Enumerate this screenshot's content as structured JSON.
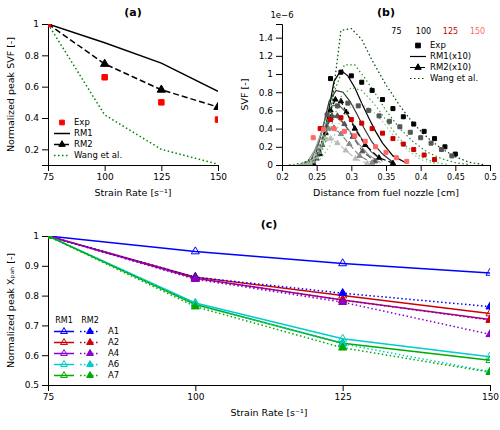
{
  "chart_data": [
    {
      "type": "line",
      "title": "(a)",
      "x_label": "Strain Rate [s⁻¹]",
      "y_label": "Normalized peak SVF [-]",
      "x": [
        75,
        100,
        125,
        150
      ],
      "series": [
        {
          "name": "Exp",
          "type": "scatter",
          "color": "red",
          "marker": "square",
          "values": [
            1.0,
            0.66,
            0.5,
            0.39
          ]
        },
        {
          "name": "RM1",
          "type": "line",
          "color": "black",
          "line_style": "solid",
          "values": [
            1.0,
            0.88,
            0.75,
            0.57
          ]
        },
        {
          "name": "RM2",
          "type": "line",
          "color": "black",
          "line_style": "dashed",
          "marker": "triangle",
          "values": [
            1.0,
            0.745,
            0.58,
            0.47
          ]
        },
        {
          "name": "Wang et al.",
          "type": "line",
          "color": "green",
          "line_style": "dotted",
          "values": [
            1.0,
            0.42,
            0.2,
            0.105
          ]
        }
      ],
      "xlim": [
        75,
        150
      ],
      "xticks": [
        75,
        100,
        125,
        150
      ],
      "ylim": [
        0.1,
        1.0
      ],
      "yticks": [
        0.2,
        0.4,
        0.6,
        0.8,
        1.0
      ],
      "grid": false,
      "legend": "lower left"
    },
    {
      "type": "line",
      "title": "(b)",
      "x_label": "Distance from fuel nozzle [cm]",
      "y_label": "SVF [-]",
      "annotations": [
        {
          "text": "1e−6"
        },
        {
          "text": "75",
          "color": "black"
        },
        {
          "text": "100",
          "color": "black"
        },
        {
          "text": "125",
          "color": "#cc0000"
        },
        {
          "text": "150",
          "color": "#ff6666"
        }
      ],
      "series": [
        {
          "name": "Exp",
          "type": "scatter",
          "marker": "square",
          "curves": [
            {
              "color": "black",
              "x": [
                0.27,
                0.285,
                0.3,
                0.315,
                0.33,
                0.345,
                0.36,
                0.375,
                0.39,
                0.405,
                0.42,
                0.435,
                0.45
              ],
              "values": [
                0.95,
                1.02,
                0.98,
                0.91,
                0.82,
                0.72,
                0.62,
                0.53,
                0.45,
                0.37,
                0.29,
                0.2,
                0.12
              ]
            },
            {
              "color": "#555555",
              "x": [
                0.265,
                0.28,
                0.295,
                0.31,
                0.325,
                0.34,
                0.355,
                0.37,
                0.385,
                0.4,
                0.415,
                0.43,
                0.445
              ],
              "values": [
                0.55,
                0.65,
                0.68,
                0.65,
                0.6,
                0.54,
                0.48,
                0.42,
                0.36,
                0.3,
                0.24,
                0.17,
                0.1
              ]
            },
            {
              "color": "#cc0000",
              "x": [
                0.255,
                0.27,
                0.285,
                0.3,
                0.315,
                0.33,
                0.345,
                0.36,
                0.375,
                0.39,
                0.405,
                0.42
              ],
              "values": [
                0.4,
                0.5,
                0.52,
                0.5,
                0.46,
                0.4,
                0.35,
                0.29,
                0.23,
                0.17,
                0.11,
                0.06
              ]
            },
            {
              "color": "#ff6666",
              "x": [
                0.245,
                0.26,
                0.275,
                0.29,
                0.305,
                0.32,
                0.335,
                0.35,
                0.365,
                0.38
              ],
              "values": [
                0.3,
                0.39,
                0.4,
                0.37,
                0.32,
                0.26,
                0.2,
                0.14,
                0.08,
                0.04
              ]
            }
          ]
        },
        {
          "name": "RM1(x10)",
          "type": "line",
          "line_style": "solid",
          "curves": [
            {
              "color": "#000000",
              "x": [
                0.24,
                0.255,
                0.265,
                0.275,
                0.285,
                0.295,
                0.305,
                0.315,
                0.325,
                0.335,
                0.345,
                0.36,
                0.38
              ],
              "values": [
                0.02,
                0.15,
                0.5,
                0.92,
                1.04,
                0.98,
                0.85,
                0.68,
                0.52,
                0.37,
                0.24,
                0.1,
                0.02
              ]
            },
            {
              "color": "#333333",
              "x": [
                0.235,
                0.248,
                0.258,
                0.268,
                0.278,
                0.288,
                0.298,
                0.308,
                0.318,
                0.33,
                0.345,
                0.36
              ],
              "values": [
                0.01,
                0.1,
                0.38,
                0.7,
                0.82,
                0.8,
                0.7,
                0.56,
                0.41,
                0.25,
                0.12,
                0.03
              ]
            },
            {
              "color": "#666666",
              "x": [
                0.23,
                0.242,
                0.252,
                0.262,
                0.272,
                0.282,
                0.292,
                0.302,
                0.314,
                0.328,
                0.345
              ],
              "values": [
                0.005,
                0.06,
                0.23,
                0.5,
                0.65,
                0.66,
                0.58,
                0.46,
                0.3,
                0.15,
                0.04
              ]
            },
            {
              "color": "#999999",
              "x": [
                0.225,
                0.237,
                0.247,
                0.257,
                0.267,
                0.277,
                0.287,
                0.298,
                0.31,
                0.325,
                0.342
              ],
              "values": [
                0.003,
                0.04,
                0.16,
                0.36,
                0.5,
                0.53,
                0.47,
                0.37,
                0.24,
                0.11,
                0.025
              ]
            }
          ]
        },
        {
          "name": "RM2(x10)",
          "type": "line",
          "line_style": "dashed",
          "marker": "triangle",
          "curves": [
            {
              "color": "#000000",
              "x": [
                0.245,
                0.255,
                0.263,
                0.27,
                0.277,
                0.285,
                0.293,
                0.305,
                0.32,
                0.34,
                0.36
              ],
              "values": [
                0.02,
                0.12,
                0.35,
                0.6,
                0.72,
                0.7,
                0.58,
                0.4,
                0.22,
                0.08,
                0.02
              ]
            },
            {
              "color": "#555555",
              "x": [
                0.24,
                0.25,
                0.258,
                0.265,
                0.272,
                0.28,
                0.29,
                0.302,
                0.316,
                0.334
              ],
              "values": [
                0.01,
                0.07,
                0.22,
                0.42,
                0.54,
                0.54,
                0.45,
                0.31,
                0.15,
                0.04
              ]
            },
            {
              "color": "#888888",
              "x": [
                0.235,
                0.245,
                0.253,
                0.26,
                0.267,
                0.275,
                0.285,
                0.297,
                0.312,
                0.33
              ],
              "values": [
                0.005,
                0.04,
                0.14,
                0.3,
                0.4,
                0.41,
                0.34,
                0.23,
                0.1,
                0.025
              ]
            },
            {
              "color": "#bbbbbb",
              "x": [
                0.23,
                0.24,
                0.248,
                0.255,
                0.262,
                0.27,
                0.28,
                0.292,
                0.306,
                0.323
              ],
              "values": [
                0.003,
                0.025,
                0.09,
                0.2,
                0.28,
                0.29,
                0.24,
                0.16,
                0.07,
                0.015
              ]
            }
          ]
        },
        {
          "name": "Wang et al.",
          "type": "line",
          "line_style": "dotted",
          "curves": [
            {
              "color": "#004400",
              "x": [
                0.21,
                0.23,
                0.25,
                0.27,
                0.285,
                0.3,
                0.315,
                0.33,
                0.35,
                0.37,
                0.39,
                0.41,
                0.43,
                0.45,
                0.47,
                0.49
              ],
              "values": [
                0.0,
                0.02,
                0.1,
                0.55,
                1.48,
                1.5,
                1.38,
                1.15,
                0.88,
                0.65,
                0.45,
                0.3,
                0.18,
                0.09,
                0.03,
                0.005
              ]
            },
            {
              "color": "#228822",
              "x": [
                0.21,
                0.23,
                0.245,
                0.26,
                0.275,
                0.29,
                0.305,
                0.32,
                0.335,
                0.35,
                0.37,
                0.39,
                0.41,
                0.43,
                0.45,
                0.47
              ],
              "values": [
                0.0,
                0.01,
                0.05,
                0.25,
                0.8,
                1.1,
                1.1,
                0.95,
                0.78,
                0.6,
                0.4,
                0.25,
                0.14,
                0.07,
                0.025,
                0.005
              ]
            },
            {
              "color": "#55aa55",
              "x": [
                0.21,
                0.225,
                0.24,
                0.255,
                0.27,
                0.285,
                0.3,
                0.315,
                0.33,
                0.345,
                0.36,
                0.38,
                0.4,
                0.42,
                0.44
              ],
              "values": [
                0.0,
                0.005,
                0.02,
                0.1,
                0.4,
                0.75,
                0.85,
                0.82,
                0.7,
                0.55,
                0.38,
                0.2,
                0.09,
                0.03,
                0.005
              ]
            },
            {
              "color": "#99cc99",
              "x": [
                0.21,
                0.225,
                0.24,
                0.255,
                0.27,
                0.285,
                0.3,
                0.315,
                0.33,
                0.345,
                0.36,
                0.38,
                0.4,
                0.42
              ],
              "values": [
                0.0,
                0.005,
                0.015,
                0.06,
                0.22,
                0.5,
                0.65,
                0.67,
                0.6,
                0.48,
                0.33,
                0.17,
                0.06,
                0.015
              ]
            }
          ]
        }
      ],
      "xlim": [
        0.2,
        0.5
      ],
      "xticks": [
        0.2,
        0.25,
        0.3,
        0.35,
        0.4,
        0.45,
        0.5
      ],
      "ylim": [
        0,
        1.55
      ],
      "yticks": [
        0,
        0.2,
        0.4,
        0.6,
        0.8,
        1.0,
        1.2,
        1.4
      ],
      "grid": false,
      "legend": "upper right"
    },
    {
      "type": "line",
      "title": "(c)",
      "x_label": "Strain Rate [s⁻¹]",
      "y_label": "Normalized peak Xₚₐₕ [-]",
      "x": [
        75,
        100,
        125,
        150
      ],
      "series": [
        {
          "name": "RM1",
          "line_style": "solid",
          "marker": "triangle-open",
          "curves": [
            {
              "name": "A1",
              "color": "#0000ff",
              "values": [
                1.0,
                0.948,
                0.908,
                0.876
              ]
            },
            {
              "name": "A2",
              "color": "#cc0000",
              "values": [
                1.0,
                0.862,
                0.8,
                0.74
              ]
            },
            {
              "name": "A4",
              "color": "#8800cc",
              "values": [
                1.0,
                0.858,
                0.785,
                0.72
              ]
            },
            {
              "name": "A6",
              "color": "#00cccc",
              "values": [
                1.0,
                0.775,
                0.655,
                0.595
              ]
            },
            {
              "name": "A7",
              "color": "#00aa00",
              "values": [
                1.0,
                0.77,
                0.64,
                0.583
              ]
            }
          ]
        },
        {
          "name": "RM2",
          "line_style": "dotted",
          "marker": "triangle",
          "curves": [
            {
              "color": "#0000ff",
              "values": [
                1.0,
                0.862,
                0.808,
                0.763
              ]
            },
            {
              "color": "#cc0000",
              "values": [
                1.0,
                0.858,
                0.785,
                0.718
              ]
            },
            {
              "color": "#8800cc",
              "values": [
                1.0,
                0.855,
                0.778,
                0.67
              ]
            },
            {
              "color": "#00cccc",
              "values": [
                1.0,
                0.772,
                0.638,
                0.545
              ]
            },
            {
              "color": "#00aa00",
              "values": [
                1.0,
                0.763,
                0.625,
                0.543
              ]
            }
          ]
        }
      ],
      "xlim": [
        75,
        150
      ],
      "xticks": [
        75,
        100,
        125,
        150
      ],
      "ylim": [
        0.5,
        1.0
      ],
      "yticks": [
        0.5,
        0.6,
        0.7,
        0.8,
        0.9,
        1.0
      ],
      "grid": false,
      "legend": "lower left"
    }
  ]
}
